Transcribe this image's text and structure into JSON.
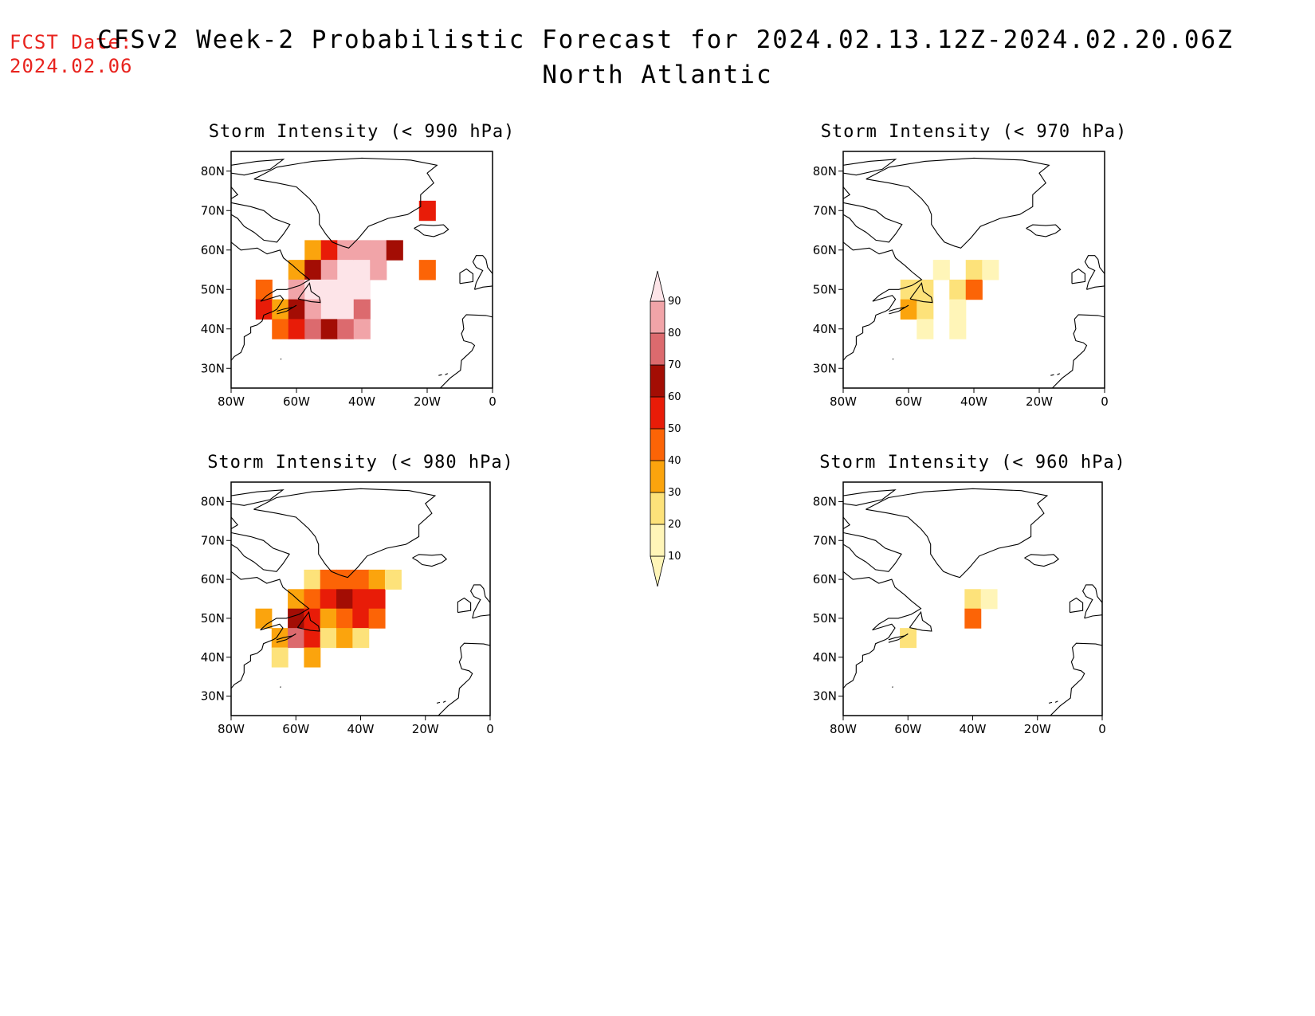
{
  "fcst_date": {
    "label": "FCST Date:",
    "value": "2024.02.06"
  },
  "title": {
    "line1": "CFSv2 Week-2 Probabilistic Forecast for 2024.02.13.12Z-2024.02.20.06Z",
    "line2": "North Atlantic"
  },
  "colors": {
    "fcst_text": "#e8231e",
    "coast": "#000000"
  },
  "colorbar": {
    "levels": [
      10,
      20,
      30,
      40,
      50,
      60,
      70,
      80,
      90
    ],
    "colors": [
      "#fff5b8",
      "#fde27a",
      "#fba40d",
      "#fc6406",
      "#e81c08",
      "#a30d04",
      "#dc6a6e",
      "#f1a4a8",
      "#fde4e8"
    ]
  },
  "axes": {
    "x_ticks": [
      "80W",
      "60W",
      "40W",
      "20W",
      "0"
    ],
    "y_ticks": [
      "30N",
      "40N",
      "50N",
      "60N",
      "70N",
      "80N"
    ],
    "lon_range": [
      -80,
      0
    ],
    "lat_range": [
      25,
      85
    ]
  },
  "panels": [
    {
      "title": "Storm Intensity (< 990 hPa)",
      "cells": [
        [
          -70,
          50,
          40
        ],
        [
          -70,
          45,
          50
        ],
        [
          -65,
          45,
          30
        ],
        [
          -65,
          40,
          40
        ],
        [
          -60,
          55,
          30
        ],
        [
          -60,
          50,
          80
        ],
        [
          -60,
          45,
          60
        ],
        [
          -60,
          40,
          50
        ],
        [
          -55,
          60,
          30
        ],
        [
          -55,
          55,
          60
        ],
        [
          -55,
          50,
          90
        ],
        [
          -55,
          45,
          80
        ],
        [
          -55,
          40,
          70
        ],
        [
          -50,
          60,
          50
        ],
        [
          -50,
          55,
          80
        ],
        [
          -50,
          50,
          90
        ],
        [
          -50,
          45,
          90
        ],
        [
          -50,
          40,
          60
        ],
        [
          -45,
          60,
          80
        ],
        [
          -45,
          55,
          90
        ],
        [
          -45,
          50,
          90
        ],
        [
          -45,
          45,
          90
        ],
        [
          -45,
          40,
          70
        ],
        [
          -40,
          60,
          80
        ],
        [
          -40,
          55,
          90
        ],
        [
          -40,
          50,
          90
        ],
        [
          -40,
          45,
          70
        ],
        [
          -40,
          40,
          80
        ],
        [
          -35,
          60,
          80
        ],
        [
          -35,
          55,
          80
        ],
        [
          -30,
          60,
          60
        ],
        [
          -20,
          70,
          50
        ],
        [
          -20,
          55,
          40
        ]
      ]
    },
    {
      "title": "Storm Intensity (< 980 hPa)",
      "cells": [
        [
          -70,
          50,
          30
        ],
        [
          -65,
          45,
          30
        ],
        [
          -65,
          40,
          20
        ],
        [
          -60,
          55,
          30
        ],
        [
          -60,
          50,
          60
        ],
        [
          -60,
          45,
          70
        ],
        [
          -55,
          60,
          20
        ],
        [
          -55,
          55,
          40
        ],
        [
          -55,
          50,
          50
        ],
        [
          -55,
          45,
          50
        ],
        [
          -55,
          40,
          30
        ],
        [
          -50,
          60,
          40
        ],
        [
          -50,
          55,
          50
        ],
        [
          -50,
          50,
          30
        ],
        [
          -50,
          45,
          20
        ],
        [
          -45,
          60,
          40
        ],
        [
          -45,
          55,
          60
        ],
        [
          -45,
          50,
          40
        ],
        [
          -45,
          45,
          30
        ],
        [
          -40,
          60,
          40
        ],
        [
          -40,
          55,
          50
        ],
        [
          -40,
          50,
          50
        ],
        [
          -40,
          45,
          20
        ],
        [
          -35,
          60,
          30
        ],
        [
          -35,
          55,
          50
        ],
        [
          -35,
          50,
          40
        ],
        [
          -30,
          60,
          20
        ]
      ]
    },
    {
      "title": "Storm Intensity (< 970 hPa)",
      "cells": [
        [
          -60,
          50,
          20
        ],
        [
          -60,
          45,
          30
        ],
        [
          -55,
          50,
          20
        ],
        [
          -55,
          45,
          20
        ],
        [
          -55,
          40,
          10
        ],
        [
          -50,
          55,
          10
        ],
        [
          -45,
          50,
          20
        ],
        [
          -45,
          45,
          10
        ],
        [
          -45,
          40,
          10
        ],
        [
          -40,
          55,
          20
        ],
        [
          -40,
          50,
          40
        ],
        [
          -35,
          55,
          10
        ]
      ]
    },
    {
      "title": "Storm Intensity (< 960 hPa)",
      "cells": [
        [
          -60,
          45,
          20
        ],
        [
          -40,
          55,
          20
        ],
        [
          -40,
          50,
          40
        ],
        [
          -35,
          55,
          10
        ]
      ]
    }
  ]
}
